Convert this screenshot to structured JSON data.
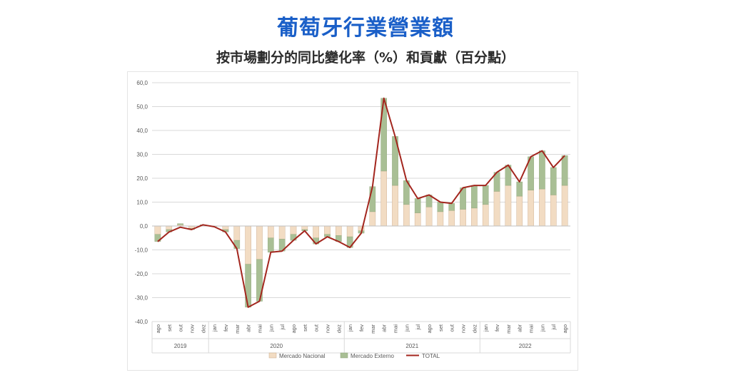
{
  "header": {
    "title": "葡萄牙行業營業額",
    "subtitle": "按市場劃分的同比變化率（%）和貢獻（百分點）"
  },
  "colors": {
    "title": "#1a5fc8",
    "nacional": "#f2dcc3",
    "nacional_border": "#c9a98a",
    "externo": "#a9bf95",
    "externo_border": "#8da478",
    "total": "#a3261e"
  },
  "chart_data": {
    "type": "bar",
    "stacked": true,
    "ylim": [
      -40,
      60
    ],
    "yticks": [
      "60,0",
      "50,0",
      "40,0",
      "30,0",
      "20,0",
      "10,0",
      "0,0",
      "-10,0",
      "-20,0",
      "-30,0",
      "-40,0"
    ],
    "ytick_values": [
      60,
      50,
      40,
      30,
      20,
      10,
      0,
      -10,
      -20,
      -30,
      -40
    ],
    "grid": true,
    "legend_position": "bottom",
    "categories": [
      "ago",
      "set",
      "out",
      "nov",
      "dez",
      "jan",
      "fev",
      "mar",
      "abr",
      "mai",
      "jun",
      "jul",
      "ago",
      "set",
      "out",
      "nov",
      "dez",
      "jan",
      "fev",
      "mar",
      "abr",
      "mai",
      "jun",
      "jul",
      "ago",
      "set",
      "out",
      "nov",
      "dez",
      "jan",
      "fev",
      "mar",
      "abr",
      "mai",
      "jun",
      "jul",
      "ago"
    ],
    "year_groups": [
      {
        "label": "2019",
        "start": 0,
        "end": 4
      },
      {
        "label": "2020",
        "start": 5,
        "end": 16
      },
      {
        "label": "2021",
        "start": 17,
        "end": 28
      },
      {
        "label": "2022",
        "start": 29,
        "end": 36
      }
    ],
    "series": [
      {
        "name": "Mercado Nacional",
        "kind": "bar",
        "values": [
          -3.5,
          -1.5,
          0.5,
          -1.0,
          0.5,
          0.0,
          -1.5,
          -6.0,
          -16.0,
          -14.0,
          -5.0,
          -5.5,
          -3.5,
          -1.5,
          -5.0,
          -3.5,
          -4.0,
          -4.5,
          -2.0,
          6.0,
          23.0,
          17.0,
          9.0,
          5.5,
          8.0,
          6.0,
          6.5,
          7.0,
          7.5,
          9.0,
          14.5,
          17.0,
          12.5,
          15.0,
          15.5,
          13.0,
          17.0
        ]
      },
      {
        "name": "Mercado Externo",
        "kind": "bar",
        "values": [
          -3.0,
          -1.0,
          0.5,
          -0.5,
          0.0,
          0.0,
          -1.0,
          -3.5,
          -18.0,
          -17.5,
          -6.0,
          -5.0,
          -2.5,
          -0.5,
          -2.5,
          -1.0,
          -2.5,
          -4.5,
          -1.0,
          10.5,
          30.5,
          20.5,
          10.0,
          6.0,
          5.0,
          4.0,
          3.0,
          9.0,
          9.5,
          8.0,
          8.0,
          8.5,
          6.0,
          14.0,
          16.0,
          11.5,
          12.5
        ]
      },
      {
        "name": "TOTAL",
        "kind": "line",
        "values": [
          -6.5,
          -2.5,
          -0.5,
          -1.5,
          0.5,
          -0.3,
          -2.5,
          -9.5,
          -34.0,
          -31.5,
          -11.0,
          -10.5,
          -6.0,
          -2.0,
          -7.5,
          -4.5,
          -6.5,
          -9.0,
          -3.0,
          16.5,
          53.5,
          37.5,
          19.0,
          11.5,
          13.0,
          10.0,
          9.5,
          16.0,
          17.0,
          17.0,
          22.5,
          25.5,
          18.5,
          29.0,
          31.5,
          24.5,
          29.5
        ]
      }
    ]
  }
}
